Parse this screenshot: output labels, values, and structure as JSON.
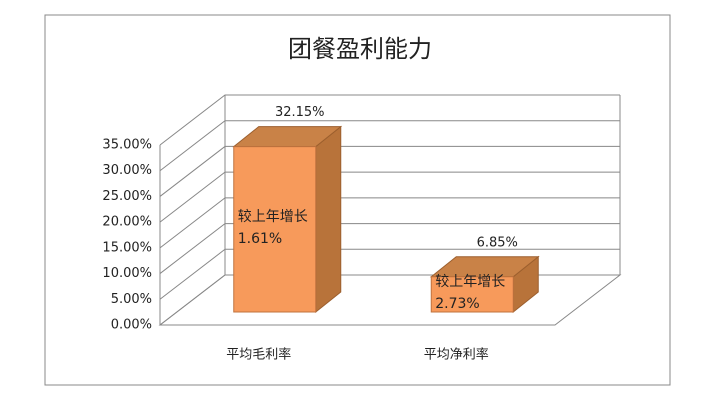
{
  "chart_data": {
    "type": "bar3d",
    "title": "团餐盈利能力",
    "categories": [
      "平均毛利率",
      "平均净利率"
    ],
    "values": [
      32.15,
      6.85
    ],
    "value_labels": [
      "32.15%",
      "6.85%"
    ],
    "annotations": [
      "较上年增长1.61%",
      "较上年增长2.73%"
    ],
    "color": "#f79a5b",
    "ylim": [
      0,
      35
    ],
    "yticks": [
      {
        "value": 0,
        "label": "0.00%"
      },
      {
        "value": 5,
        "label": "5.00%"
      },
      {
        "value": 10,
        "label": "10.00%"
      },
      {
        "value": 15,
        "label": "15.00%"
      },
      {
        "value": 20,
        "label": "20.00%"
      },
      {
        "value": 25,
        "label": "25.00%"
      },
      {
        "value": 30,
        "label": "30.00%"
      },
      {
        "value": 35,
        "label": "35.00%"
      }
    ],
    "grid": true
  }
}
